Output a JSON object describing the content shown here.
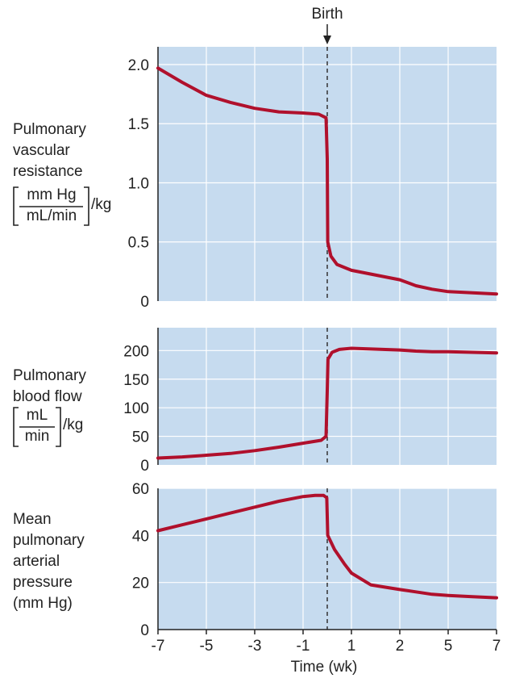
{
  "chart_data": {
    "event_marker": {
      "label": "Birth",
      "x_position": "between -1 and 1"
    },
    "x_axis": {
      "label": "Time (wk)",
      "tick_labels": [
        "-7",
        "-5",
        "-3",
        "-1",
        "1",
        "2",
        "5",
        "7"
      ]
    },
    "panels": [
      {
        "type": "line",
        "ylabel_lines": [
          "Pulmonary",
          "vascular",
          "resistance"
        ],
        "ylabel_unit": {
          "numerator": "mm Hg",
          "denominator": "mL/min",
          "suffix": "/kg"
        },
        "ylim": [
          0,
          2.15
        ],
        "yticks": [
          0,
          0.5,
          1.0,
          1.5,
          2.0
        ],
        "ytick_labels": [
          "0",
          "0.5",
          "1.0",
          "1.5",
          "2.0"
        ],
        "grid": true,
        "series": [
          {
            "color": "#b0102c",
            "points": [
              [
                -7,
                1.97
              ],
              [
                -6,
                1.85
              ],
              [
                -5,
                1.74
              ],
              [
                -4,
                1.68
              ],
              [
                -3,
                1.63
              ],
              [
                -2,
                1.6
              ],
              [
                -1,
                1.59
              ],
              [
                -0.35,
                1.58
              ],
              [
                -0.05,
                1.55
              ],
              [
                0.0,
                1.2
              ],
              [
                0.02,
                0.5
              ],
              [
                0.15,
                0.38
              ],
              [
                0.4,
                0.31
              ],
              [
                1,
                0.26
              ],
              [
                2,
                0.18
              ],
              [
                3,
                0.13
              ],
              [
                4,
                0.1
              ],
              [
                5,
                0.08
              ],
              [
                6,
                0.07
              ],
              [
                7,
                0.06
              ]
            ]
          }
        ]
      },
      {
        "type": "line",
        "ylabel_lines": [
          "Pulmonary",
          "blood flow"
        ],
        "ylabel_unit": {
          "numerator": "mL",
          "denominator": "min",
          "suffix": "/kg"
        },
        "ylim": [
          0,
          240
        ],
        "yticks": [
          0,
          50,
          100,
          150,
          200
        ],
        "ytick_labels": [
          "0",
          "50",
          "100",
          "150",
          "200"
        ],
        "grid": true,
        "series": [
          {
            "color": "#b0102c",
            "points": [
              [
                -7,
                12
              ],
              [
                -6,
                14
              ],
              [
                -5,
                17
              ],
              [
                -4,
                20
              ],
              [
                -3,
                25
              ],
              [
                -2,
                31
              ],
              [
                -1,
                38
              ],
              [
                -0.25,
                43
              ],
              [
                -0.05,
                50
              ],
              [
                0.0,
                130
              ],
              [
                0.03,
                185
              ],
              [
                0.2,
                197
              ],
              [
                0.5,
                202
              ],
              [
                1,
                204
              ],
              [
                2,
                201
              ],
              [
                3,
                199
              ],
              [
                4,
                198
              ],
              [
                5,
                198
              ],
              [
                6,
                197
              ],
              [
                7,
                196
              ]
            ]
          }
        ]
      },
      {
        "type": "line",
        "ylabel_lines": [
          "Mean",
          "pulmonary",
          "arterial",
          "pressure",
          "(mm Hg)"
        ],
        "ylim": [
          0,
          60
        ],
        "yticks": [
          0,
          20,
          40,
          60
        ],
        "ytick_labels": [
          "0",
          "20",
          "40",
          "60"
        ],
        "grid": true,
        "series": [
          {
            "color": "#b0102c",
            "points": [
              [
                -7,
                42
              ],
              [
                -6,
                44.5
              ],
              [
                -5,
                47
              ],
              [
                -4,
                49.5
              ],
              [
                -3,
                52
              ],
              [
                -2,
                54.5
              ],
              [
                -1,
                56.5
              ],
              [
                -0.5,
                57
              ],
              [
                -0.15,
                57
              ],
              [
                -0.02,
                56
              ],
              [
                0.02,
                40
              ],
              [
                0.3,
                34
              ],
              [
                0.7,
                28
              ],
              [
                1.0,
                24
              ],
              [
                1.4,
                19
              ],
              [
                2,
                17
              ],
              [
                3,
                16
              ],
              [
                4,
                15
              ],
              [
                5,
                14.5
              ],
              [
                6,
                14
              ],
              [
                7,
                13.5
              ]
            ]
          }
        ]
      }
    ]
  }
}
